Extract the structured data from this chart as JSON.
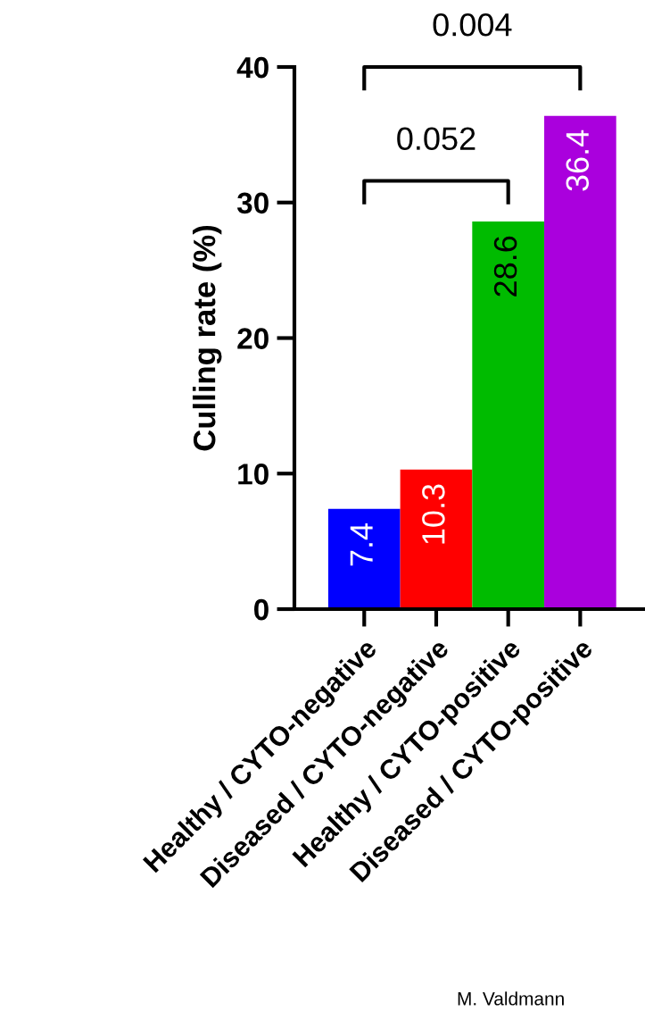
{
  "chart_data": {
    "type": "bar",
    "ylabel": "Culling rate (%)",
    "categories": [
      "Healthy / CYTO-negative",
      "Diseased / CYTO-negative",
      "Healthy / CYTO-positive",
      "Diseased / CYTO-positive"
    ],
    "values": [
      7.4,
      10.3,
      28.6,
      36.4
    ],
    "colors": [
      "#0000ff",
      "#ff0000",
      "#00bb00",
      "#aa00dd"
    ],
    "data_labels": true,
    "ylim": [
      0,
      40
    ],
    "yticks": [
      0,
      10,
      20,
      30,
      40
    ],
    "grid": false,
    "legend": false,
    "annotations": [
      "0.052",
      "0.004",
      "M. Valdmann"
    ]
  }
}
